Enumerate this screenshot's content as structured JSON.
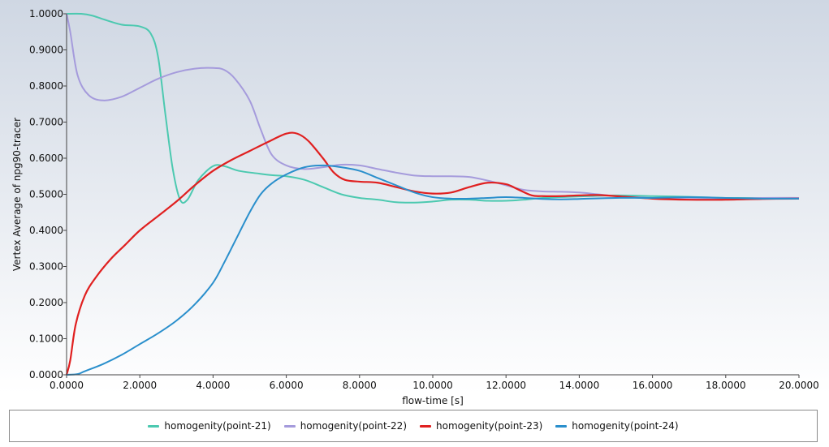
{
  "chart_data": {
    "type": "line",
    "title": "",
    "xlabel": "flow-time [s]",
    "ylabel": "Vertex Average of npg90-tracer",
    "xlim": [
      0,
      20
    ],
    "ylim": [
      0,
      1
    ],
    "x_ticks": [
      "0.0000",
      "2.0000",
      "4.0000",
      "6.0000",
      "8.0000",
      "10.0000",
      "12.0000",
      "14.0000",
      "16.0000",
      "18.0000",
      "20.0000"
    ],
    "y_ticks": [
      "0.0000",
      "0.1000",
      "0.2000",
      "0.3000",
      "0.4000",
      "0.5000",
      "0.6000",
      "0.7000",
      "0.8000",
      "0.9000",
      "1.0000"
    ],
    "grid": false,
    "legend_position": "bottom",
    "series": [
      {
        "name": "homogenity(point-21)",
        "color": "#4cc9b0",
        "points": [
          [
            0,
            1.0
          ],
          [
            0.4,
            1.0
          ],
          [
            0.7,
            0.995
          ],
          [
            1.0,
            0.985
          ],
          [
            1.5,
            0.97
          ],
          [
            2.0,
            0.965
          ],
          [
            2.3,
            0.945
          ],
          [
            2.5,
            0.88
          ],
          [
            2.7,
            0.72
          ],
          [
            2.9,
            0.57
          ],
          [
            3.1,
            0.485
          ],
          [
            3.3,
            0.485
          ],
          [
            3.6,
            0.54
          ],
          [
            4.0,
            0.578
          ],
          [
            4.3,
            0.578
          ],
          [
            4.7,
            0.565
          ],
          [
            5.2,
            0.558
          ],
          [
            5.6,
            0.553
          ],
          [
            6.0,
            0.55
          ],
          [
            6.5,
            0.54
          ],
          [
            7.0,
            0.52
          ],
          [
            7.5,
            0.5
          ],
          [
            8.0,
            0.49
          ],
          [
            8.5,
            0.485
          ],
          [
            9.0,
            0.478
          ],
          [
            9.5,
            0.477
          ],
          [
            10.0,
            0.48
          ],
          [
            10.5,
            0.485
          ],
          [
            11.0,
            0.485
          ],
          [
            11.5,
            0.482
          ],
          [
            12.0,
            0.482
          ],
          [
            12.5,
            0.485
          ],
          [
            13.0,
            0.49
          ],
          [
            14.0,
            0.494
          ],
          [
            15.0,
            0.497
          ],
          [
            16.0,
            0.495
          ],
          [
            17.0,
            0.493
          ],
          [
            18.0,
            0.49
          ],
          [
            19.0,
            0.49
          ],
          [
            20.0,
            0.49
          ]
        ]
      },
      {
        "name": "homogenity(point-22)",
        "color": "#a59bdc",
        "points": [
          [
            0,
            1.0
          ],
          [
            0.1,
            0.95
          ],
          [
            0.3,
            0.83
          ],
          [
            0.6,
            0.775
          ],
          [
            1.0,
            0.76
          ],
          [
            1.5,
            0.77
          ],
          [
            2.0,
            0.795
          ],
          [
            2.5,
            0.82
          ],
          [
            3.0,
            0.838
          ],
          [
            3.5,
            0.848
          ],
          [
            4.0,
            0.85
          ],
          [
            4.3,
            0.845
          ],
          [
            4.6,
            0.82
          ],
          [
            5.0,
            0.76
          ],
          [
            5.3,
            0.68
          ],
          [
            5.6,
            0.61
          ],
          [
            6.0,
            0.58
          ],
          [
            6.5,
            0.57
          ],
          [
            7.0,
            0.575
          ],
          [
            7.5,
            0.582
          ],
          [
            8.0,
            0.58
          ],
          [
            8.5,
            0.57
          ],
          [
            9.0,
            0.56
          ],
          [
            9.5,
            0.552
          ],
          [
            10.0,
            0.55
          ],
          [
            10.5,
            0.55
          ],
          [
            11.0,
            0.548
          ],
          [
            11.5,
            0.538
          ],
          [
            12.0,
            0.525
          ],
          [
            12.5,
            0.512
          ],
          [
            13.0,
            0.508
          ],
          [
            13.5,
            0.507
          ],
          [
            14.0,
            0.505
          ],
          [
            14.5,
            0.5
          ],
          [
            15.0,
            0.495
          ],
          [
            16.0,
            0.49
          ],
          [
            17.0,
            0.487
          ],
          [
            18.0,
            0.488
          ],
          [
            19.0,
            0.49
          ],
          [
            20.0,
            0.49
          ]
        ]
      },
      {
        "name": "homogenity(point-23)",
        "color": "#e02020",
        "points": [
          [
            0,
            0.0
          ],
          [
            0.1,
            0.04
          ],
          [
            0.25,
            0.14
          ],
          [
            0.5,
            0.22
          ],
          [
            0.8,
            0.27
          ],
          [
            1.2,
            0.32
          ],
          [
            1.6,
            0.36
          ],
          [
            2.0,
            0.4
          ],
          [
            2.5,
            0.44
          ],
          [
            3.0,
            0.48
          ],
          [
            3.5,
            0.525
          ],
          [
            4.0,
            0.565
          ],
          [
            4.5,
            0.595
          ],
          [
            5.0,
            0.62
          ],
          [
            5.5,
            0.645
          ],
          [
            6.0,
            0.668
          ],
          [
            6.3,
            0.668
          ],
          [
            6.6,
            0.648
          ],
          [
            7.0,
            0.6
          ],
          [
            7.3,
            0.56
          ],
          [
            7.6,
            0.54
          ],
          [
            8.0,
            0.535
          ],
          [
            8.5,
            0.532
          ],
          [
            9.0,
            0.52
          ],
          [
            9.5,
            0.508
          ],
          [
            10.0,
            0.502
          ],
          [
            10.5,
            0.505
          ],
          [
            11.0,
            0.52
          ],
          [
            11.5,
            0.532
          ],
          [
            12.0,
            0.528
          ],
          [
            12.3,
            0.515
          ],
          [
            12.7,
            0.497
          ],
          [
            13.0,
            0.495
          ],
          [
            13.5,
            0.495
          ],
          [
            14.0,
            0.497
          ],
          [
            14.5,
            0.498
          ],
          [
            15.0,
            0.495
          ],
          [
            16.0,
            0.488
          ],
          [
            17.0,
            0.485
          ],
          [
            18.0,
            0.485
          ],
          [
            19.0,
            0.487
          ],
          [
            20.0,
            0.488
          ]
        ]
      },
      {
        "name": "homogenity(point-24)",
        "color": "#2a8fcc",
        "points": [
          [
            0,
            0.0
          ],
          [
            0.3,
            0.002
          ],
          [
            0.5,
            0.01
          ],
          [
            1.0,
            0.03
          ],
          [
            1.5,
            0.055
          ],
          [
            2.0,
            0.085
          ],
          [
            2.5,
            0.115
          ],
          [
            3.0,
            0.15
          ],
          [
            3.5,
            0.195
          ],
          [
            4.0,
            0.255
          ],
          [
            4.3,
            0.31
          ],
          [
            4.6,
            0.37
          ],
          [
            5.0,
            0.45
          ],
          [
            5.3,
            0.5
          ],
          [
            5.6,
            0.53
          ],
          [
            6.0,
            0.555
          ],
          [
            6.5,
            0.575
          ],
          [
            7.0,
            0.58
          ],
          [
            7.5,
            0.575
          ],
          [
            8.0,
            0.565
          ],
          [
            8.5,
            0.545
          ],
          [
            9.0,
            0.525
          ],
          [
            9.5,
            0.505
          ],
          [
            10.0,
            0.492
          ],
          [
            10.5,
            0.488
          ],
          [
            11.0,
            0.488
          ],
          [
            11.5,
            0.49
          ],
          [
            12.0,
            0.492
          ],
          [
            12.5,
            0.49
          ],
          [
            13.0,
            0.487
          ],
          [
            13.5,
            0.486
          ],
          [
            14.0,
            0.487
          ],
          [
            15.0,
            0.49
          ],
          [
            16.0,
            0.49
          ],
          [
            17.0,
            0.492
          ],
          [
            18.0,
            0.49
          ],
          [
            19.0,
            0.488
          ],
          [
            20.0,
            0.488
          ]
        ]
      }
    ]
  }
}
